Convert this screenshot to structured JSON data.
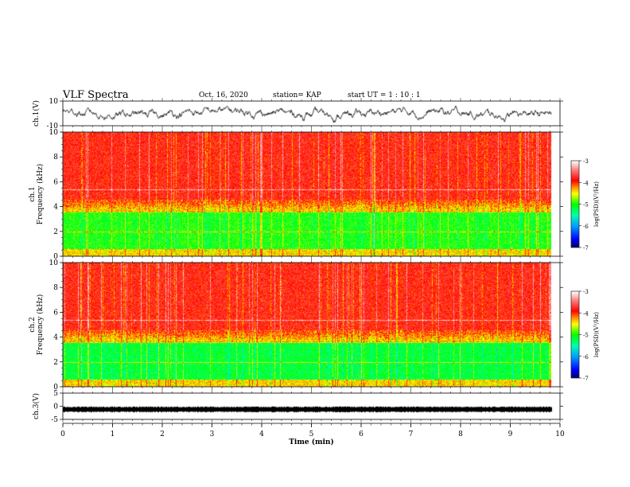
{
  "header": {
    "title": "VLF Spectra",
    "date": "Oct. 16, 2020",
    "station": "station= KAP",
    "start": "start  UT =   1 : 10 : 1"
  },
  "chart_data": [
    {
      "type": "line",
      "ylabel": "ch.1(V)",
      "ylim": [
        -10,
        10
      ],
      "yticks": [
        "10",
        "-10"
      ],
      "series": [
        {
          "values_description": "noisy waveform roughly between -8 and 8 V"
        }
      ]
    },
    {
      "type": "heatmap",
      "ylabel": "ch.1\nFrequency (kHz)",
      "ylim": [
        0,
        10
      ],
      "yticks": [
        "0",
        "2",
        "4",
        "6",
        "8",
        "10"
      ],
      "colorbar": {
        "label": "log(PSD)(V²/Hz)",
        "range": [
          -7,
          -3
        ],
        "ticks": [
          "-3",
          "-4",
          "-5",
          "-6",
          "-7"
        ]
      }
    },
    {
      "type": "heatmap",
      "ylabel": "ch.2\nFrequency (kHz)",
      "ylim": [
        0,
        10
      ],
      "yticks": [
        "0",
        "2",
        "4",
        "6",
        "8",
        "10"
      ],
      "colorbar": {
        "label": "log(PSD)(V²/Hz)",
        "range": [
          -7,
          -3
        ],
        "ticks": [
          "-3",
          "-4",
          "-5",
          "-6",
          "-7"
        ]
      }
    },
    {
      "type": "line",
      "ylabel": "ch.3(V)",
      "ylim": [
        -5,
        5
      ],
      "yticks": [
        "5",
        "0",
        "-5"
      ],
      "series": [
        {
          "level": -1.2
        }
      ]
    }
  ],
  "xaxis": {
    "label": "Time (min)",
    "range": [
      0,
      10
    ],
    "ticks": [
      "0",
      "1",
      "2",
      "3",
      "4",
      "5",
      "6",
      "7",
      "8",
      "9",
      "10"
    ],
    "data_end": 9.83
  },
  "colors": {
    "scale": [
      "#000060",
      "#0000ff",
      "#00a0ff",
      "#00ffb0",
      "#00ff00",
      "#ffff00",
      "#ff8000",
      "#ff0000",
      "#ff8080",
      "#ffffff"
    ]
  }
}
